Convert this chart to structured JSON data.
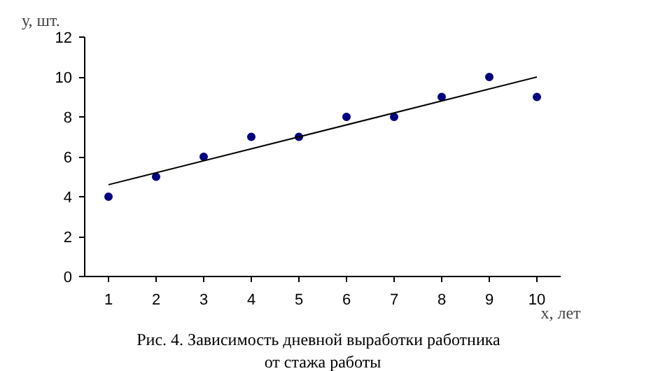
{
  "chart_data": {
    "type": "scatter",
    "ylabel": "у, шт.",
    "xlabel": "х, лет",
    "annotations": [
      "Рис. 4.  Зависимость дневной выработки  работника",
      "от стажа работы"
    ],
    "xlim": [
      0.5,
      10.5
    ],
    "xticks": [
      1,
      2,
      3,
      4,
      5,
      6,
      7,
      8,
      9,
      10
    ],
    "ylim": [
      0,
      12
    ],
    "yticks": [
      0,
      2,
      4,
      6,
      8,
      10,
      12
    ],
    "grid": false,
    "marker": "circle",
    "series": [
      {
        "color": "#000080",
        "x": [
          1,
          2,
          3,
          4,
          5,
          6,
          7,
          8,
          9,
          10
        ],
        "values": [
          4,
          5,
          6,
          7,
          7,
          8,
          8,
          9,
          10,
          9
        ]
      },
      {
        "type": "line",
        "color": "#000000",
        "x": [
          1,
          10
        ],
        "values": [
          4.6,
          10
        ],
        "marker": "none",
        "line_style": "solid"
      }
    ]
  }
}
